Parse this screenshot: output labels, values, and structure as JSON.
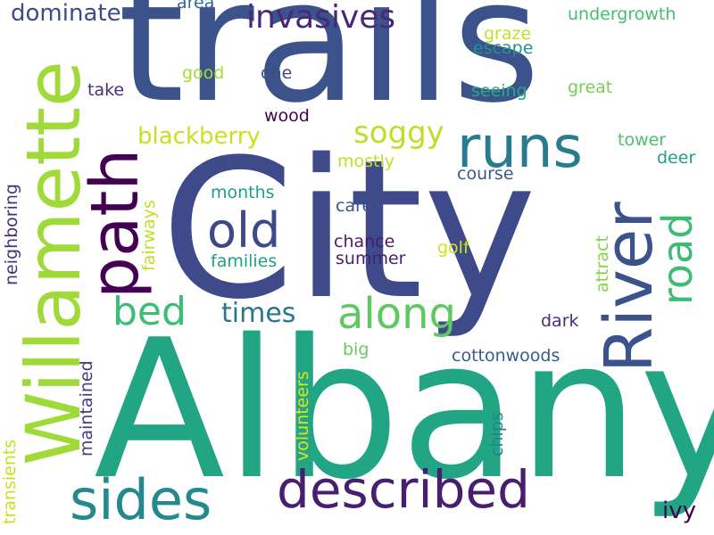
{
  "words": [
    {
      "id": "trails",
      "text": "trails",
      "color": "#3b528b"
    },
    {
      "id": "city",
      "text": "City",
      "color": "#3e4a89"
    },
    {
      "id": "albany",
      "text": "Albany",
      "color": "#21a585"
    },
    {
      "id": "willamette",
      "text": "Willamette",
      "color": "#a0da39"
    },
    {
      "id": "path",
      "text": "path",
      "color": "#440154"
    },
    {
      "id": "river",
      "text": "River",
      "color": "#3b528b"
    },
    {
      "id": "described",
      "text": "described",
      "color": "#481f70"
    },
    {
      "id": "sides",
      "text": "sides",
      "color": "#23898e"
    },
    {
      "id": "runs",
      "text": "runs",
      "color": "#287c8e"
    },
    {
      "id": "old",
      "text": "old",
      "color": "#3e4989"
    },
    {
      "id": "bed",
      "text": "bed",
      "color": "#3dbc74"
    },
    {
      "id": "along",
      "text": "along",
      "color": "#5ec962"
    },
    {
      "id": "road",
      "text": "road",
      "color": "#3dbc74"
    },
    {
      "id": "invasives",
      "text": "invasives",
      "color": "#482878"
    },
    {
      "id": "dominate",
      "text": "dominate",
      "color": "#3e4a89"
    },
    {
      "id": "soggy",
      "text": "soggy",
      "color": "#bddf26"
    },
    {
      "id": "blackberry",
      "text": "blackberry",
      "color": "#c8e020"
    },
    {
      "id": "times",
      "text": "times",
      "color": "#2a768e"
    },
    {
      "id": "area",
      "text": "area",
      "color": "#31688e"
    },
    {
      "id": "undergrowth",
      "text": "undergrowth",
      "color": "#44bf70"
    },
    {
      "id": "graze",
      "text": "graze",
      "color": "#c2df23"
    },
    {
      "id": "escape",
      "text": "escape",
      "color": "#1f948c"
    },
    {
      "id": "good",
      "text": "good",
      "color": "#a5db36"
    },
    {
      "id": "one",
      "text": "one",
      "color": "#3e4a89"
    },
    {
      "id": "great",
      "text": "great",
      "color": "#75d054"
    },
    {
      "id": "seeing",
      "text": "seeing",
      "color": "#25ac82"
    },
    {
      "id": "take",
      "text": "take",
      "color": "#472d7b"
    },
    {
      "id": "wood",
      "text": "wood",
      "color": "#440154"
    },
    {
      "id": "tower",
      "text": "tower",
      "color": "#4ac16d"
    },
    {
      "id": "mostly",
      "text": "mostly",
      "color": "#c2df23"
    },
    {
      "id": "deer",
      "text": "deer",
      "color": "#1f9e89"
    },
    {
      "id": "course",
      "text": "course",
      "color": "#38598c"
    },
    {
      "id": "months",
      "text": "months",
      "color": "#1f9f88"
    },
    {
      "id": "care",
      "text": "care",
      "color": "#3b528b"
    },
    {
      "id": "chance",
      "text": "chance",
      "color": "#481a6c"
    },
    {
      "id": "summer",
      "text": "summer",
      "color": "#482071"
    },
    {
      "id": "families",
      "text": "families",
      "color": "#1fa188"
    },
    {
      "id": "golf",
      "text": "golf",
      "color": "#d2e21b"
    },
    {
      "id": "fairways",
      "text": "fairways",
      "color": "#bddf26"
    },
    {
      "id": "neighboring",
      "text": "neighboring",
      "color": "#46327e"
    },
    {
      "id": "attract",
      "text": "attract",
      "color": "#86d549"
    },
    {
      "id": "dark",
      "text": "dark",
      "color": "#46307e"
    },
    {
      "id": "big",
      "text": "big",
      "color": "#65cb5e"
    },
    {
      "id": "cottonwoods",
      "text": "cottonwoods",
      "color": "#365c8d"
    },
    {
      "id": "maintained",
      "text": "maintained",
      "color": "#443a83"
    },
    {
      "id": "volunteers",
      "text": "volunteers",
      "color": "#dde318"
    },
    {
      "id": "chips",
      "text": "chips",
      "color": "#26828e"
    },
    {
      "id": "transients",
      "text": "transients",
      "color": "#c8e020"
    },
    {
      "id": "ivy",
      "text": "ivy",
      "color": "#440154"
    }
  ]
}
